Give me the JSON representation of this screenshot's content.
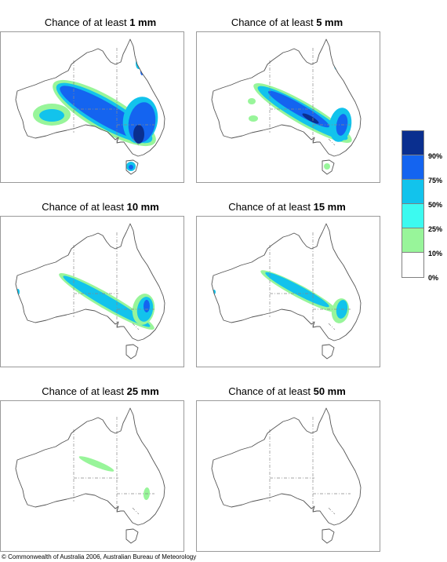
{
  "panels": [
    {
      "prefix": "Chance of at least ",
      "value": "1 mm",
      "level": 1
    },
    {
      "prefix": "Chance of at least ",
      "value": "5 mm",
      "level": 5
    },
    {
      "prefix": "Chance of at least ",
      "value": "10 mm",
      "level": 10
    },
    {
      "prefix": "Chance of at least ",
      "value": "15 mm",
      "level": 15
    },
    {
      "prefix": "Chance of at least ",
      "value": "25 mm",
      "level": 25
    },
    {
      "prefix": "Chance of at least ",
      "value": "50 mm",
      "level": 50
    }
  ],
  "legend": {
    "bins": [
      {
        "label": "90%",
        "color": "#0a2f8f"
      },
      {
        "label": "75%",
        "color": "#1464f0"
      },
      {
        "label": "50%",
        "color": "#12c3ec"
      },
      {
        "label": "25%",
        "color": "#3cfaf0"
      },
      {
        "label": "10%",
        "color": "#98f59a"
      },
      {
        "label": "0%",
        "color": "#ffffff"
      }
    ]
  },
  "footer": "© Commonwealth of Australia 2006, Australian Bureau of Meteorology"
}
